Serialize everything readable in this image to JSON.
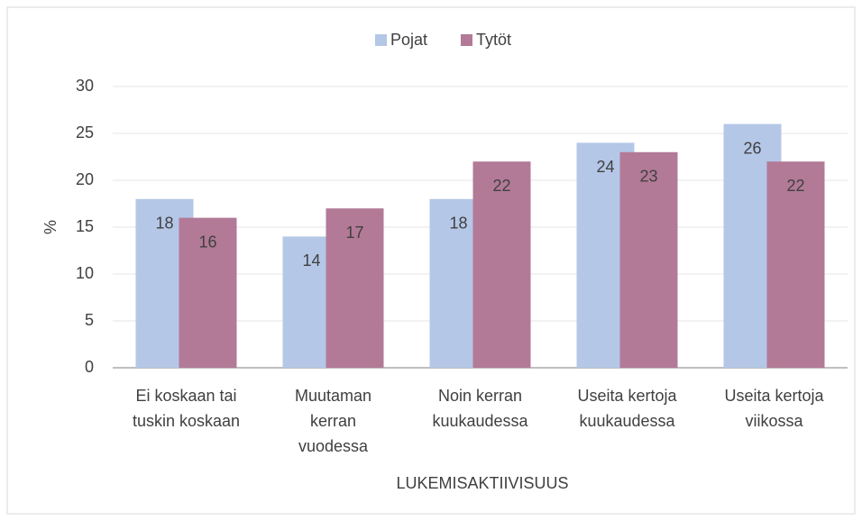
{
  "chart_data": {
    "type": "bar",
    "x_label": "LUKEMISAKTIIVISUUS",
    "y_label": "%",
    "categories": [
      [
        "Ei koskaan tai",
        "tuskin koskaan"
      ],
      [
        "Muutaman",
        "kerran",
        "vuodessa"
      ],
      [
        "Noin kerran",
        "kuukaudessa"
      ],
      [
        "Useita kertoja",
        "kuukaudessa"
      ],
      [
        "Useita kertoja",
        "viikossa"
      ]
    ],
    "series": [
      {
        "name": "Pojat",
        "color": "#b4c7e7",
        "values": [
          18,
          14,
          18,
          24,
          26
        ]
      },
      {
        "name": "Tytöt",
        "color": "#b27a97",
        "values": [
          16,
          17,
          22,
          23,
          22
        ]
      }
    ],
    "ylim": [
      0,
      30
    ],
    "yticks": [
      0,
      5,
      10,
      15,
      20,
      25,
      30
    ],
    "grid": true,
    "legend": "top"
  }
}
